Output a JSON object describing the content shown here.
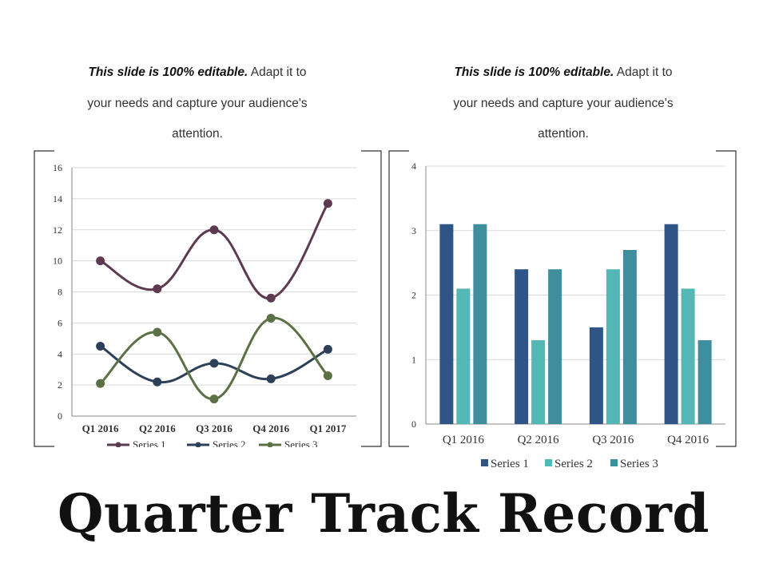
{
  "captions": [
    {
      "bold": "This slide is 100% editable.",
      "line1_rest": " Adapt it to",
      "line2": "your needs and capture your audience's",
      "line3": "attention."
    },
    {
      "bold": "This slide is 100% editable.",
      "line1_rest": " Adapt it to",
      "line2": "your needs and capture your audience's",
      "line3": "attention."
    }
  ],
  "page_title": "Quarter Track Record",
  "chart_data": [
    {
      "type": "line",
      "smooth": true,
      "categories": [
        "Q1 2016",
        "Q2 2016",
        "Q3 2016",
        "Q4 2016",
        "Q1 2017"
      ],
      "series": [
        {
          "name": "Series 1",
          "color": "#5e3a50",
          "values": [
            10,
            8.2,
            12,
            7.6,
            13.7
          ]
        },
        {
          "name": "Series 2",
          "color": "#2e4057",
          "values": [
            4.5,
            2.2,
            3.4,
            2.4,
            4.3
          ]
        },
        {
          "name": "Series 3",
          "color": "#5c7046",
          "values": [
            2.1,
            5.4,
            1.1,
            6.3,
            2.6
          ]
        }
      ],
      "ylim": [
        0,
        16
      ],
      "yticks": [
        0,
        2,
        4,
        6,
        8,
        10,
        12,
        14,
        16
      ],
      "grid": true,
      "legend": "bottom"
    },
    {
      "type": "bar",
      "categories": [
        "Q1 2016",
        "Q2 2016",
        "Q3 2016",
        "Q4 2016"
      ],
      "series": [
        {
          "name": "Series 1",
          "color": "#2f5587",
          "values": [
            3.1,
            2.4,
            1.5,
            3.1
          ]
        },
        {
          "name": "Series 2",
          "color": "#52b7b5",
          "values": [
            2.1,
            1.3,
            2.4,
            2.1
          ]
        },
        {
          "name": "Series 3",
          "color": "#3f8e9e",
          "values": [
            3.1,
            2.4,
            2.7,
            1.3
          ]
        }
      ],
      "ylim": [
        0,
        4
      ],
      "yticks": [
        0,
        1,
        2,
        3,
        4
      ],
      "grid": true,
      "legend": "bottom"
    }
  ]
}
